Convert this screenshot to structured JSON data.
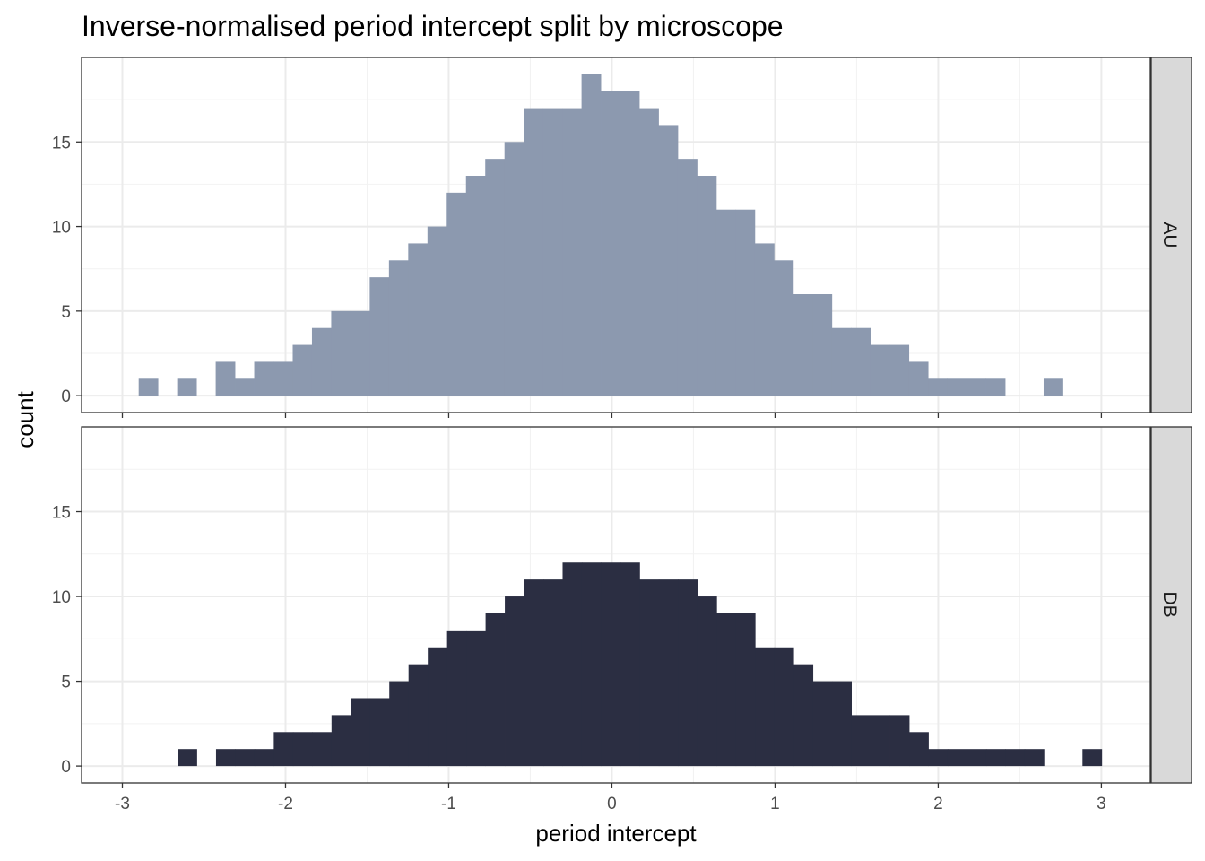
{
  "chart_data": {
    "type": "bar",
    "subtype": "faceted-histogram",
    "title": "Inverse-normalised period intercept split by microscope",
    "xlabel": "period intercept",
    "ylabel": "count",
    "xlim": [
      -3.25,
      3.3
    ],
    "ylim": [
      -1,
      20
    ],
    "x_ticks": [
      -3,
      -2,
      -1,
      0,
      1,
      2,
      3
    ],
    "y_ticks": [
      0,
      5,
      10,
      15
    ],
    "grid": true,
    "theme": "bw",
    "facets": [
      {
        "label": "AU",
        "color": "#8C99AF",
        "bin_start": -2.9,
        "bin_width": 0.118,
        "counts": [
          1,
          0,
          1,
          0,
          2,
          1,
          2,
          2,
          3,
          4,
          5,
          5,
          7,
          8,
          9,
          10,
          12,
          13,
          14,
          15,
          17,
          17,
          17,
          19,
          18,
          18,
          17,
          16,
          14,
          13,
          11,
          11,
          9,
          8,
          6,
          6,
          4,
          4,
          3,
          3,
          2,
          1,
          1,
          1,
          1,
          0,
          0,
          1
        ]
      },
      {
        "label": "DB",
        "color": "#2B2E42",
        "bin_start": -2.662,
        "bin_width": 0.118,
        "counts": [
          1,
          0,
          1,
          1,
          1,
          2,
          2,
          2,
          3,
          4,
          4,
          5,
          6,
          7,
          8,
          8,
          9,
          10,
          11,
          11,
          12,
          12,
          12,
          12,
          11,
          11,
          11,
          10,
          9,
          9,
          7,
          7,
          6,
          5,
          5,
          3,
          3,
          3,
          2,
          1,
          1,
          1,
          1,
          1,
          1,
          0,
          0,
          1
        ]
      }
    ]
  }
}
